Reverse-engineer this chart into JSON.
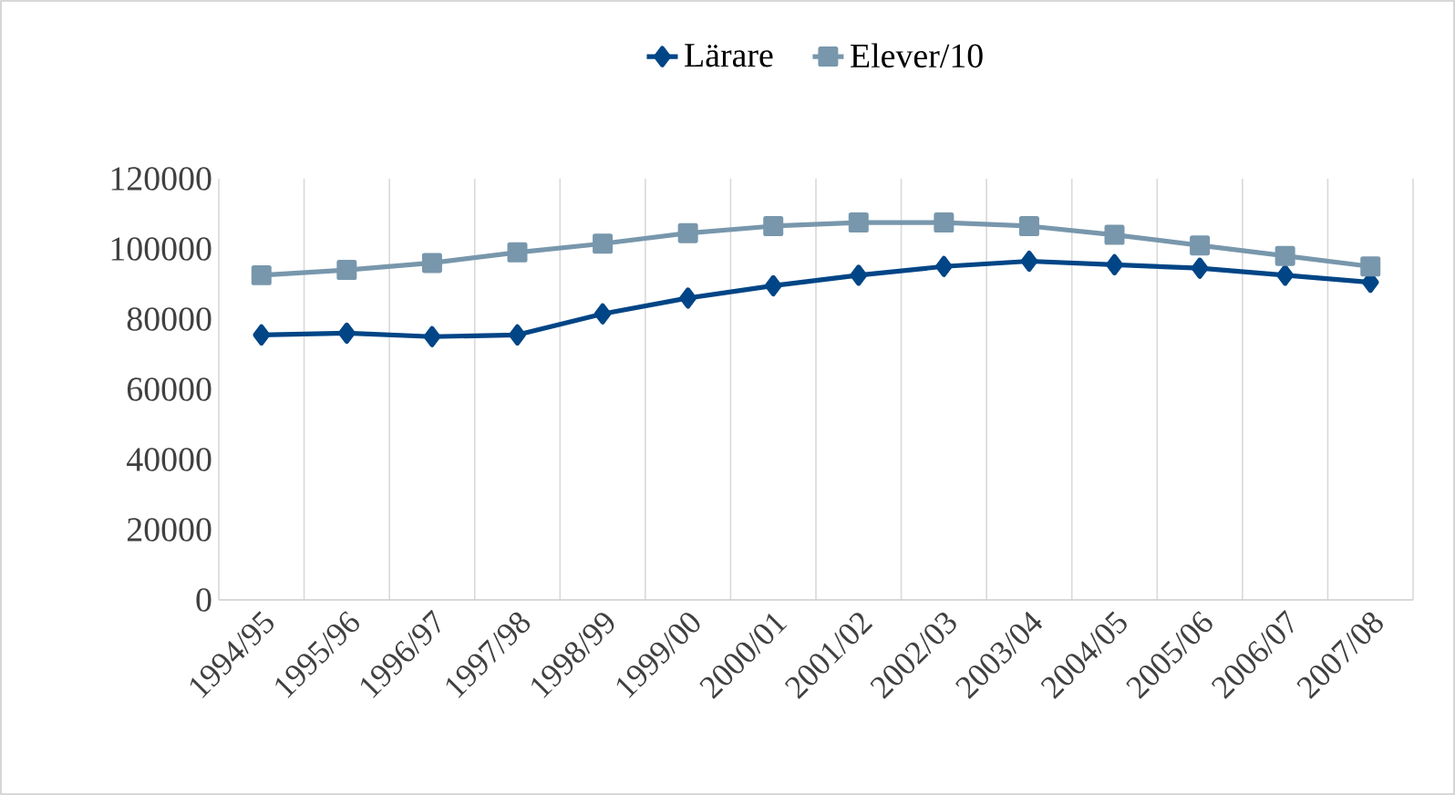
{
  "chart_data": {
    "type": "line",
    "categories": [
      "1994/95",
      "1995/96",
      "1996/97",
      "1997/98",
      "1998/99",
      "1999/00",
      "2000/01",
      "2001/02",
      "2002/03",
      "2003/04",
      "2004/05",
      "2005/06",
      "2006/07",
      "2007/08"
    ],
    "series": [
      {
        "name": "Lärare",
        "color": "#004586",
        "marker": "diamond",
        "values": [
          75500,
          76000,
          75000,
          75500,
          81500,
          86000,
          89500,
          92500,
          95000,
          96500,
          95500,
          94500,
          92500,
          90500
        ]
      },
      {
        "name": "Elever/10",
        "color": "#7897ac",
        "marker": "square",
        "values": [
          92500,
          94000,
          96000,
          99000,
          101500,
          104500,
          106500,
          107500,
          107500,
          106500,
          104000,
          101000,
          98000,
          95000
        ]
      }
    ],
    "ylim": [
      0,
      120000
    ],
    "yticks": [
      0,
      20000,
      40000,
      60000,
      80000,
      100000,
      120000
    ],
    "grid": "x",
    "legend": "top",
    "line_style": "solid"
  }
}
